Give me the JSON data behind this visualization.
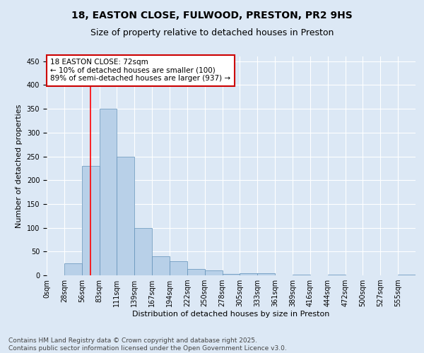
{
  "title_line1": "18, EASTON CLOSE, FULWOOD, PRESTON, PR2 9HS",
  "title_line2": "Size of property relative to detached houses in Preston",
  "xlabel": "Distribution of detached houses by size in Preston",
  "ylabel": "Number of detached properties",
  "footer_line1": "Contains HM Land Registry data © Crown copyright and database right 2025.",
  "footer_line2": "Contains public sector information licensed under the Open Government Licence v3.0.",
  "annotation_line1": "18 EASTON CLOSE: 72sqm",
  "annotation_line2": "← 10% of detached houses are smaller (100)",
  "annotation_line3": "89% of semi-detached houses are larger (937) →",
  "bar_labels": [
    "0sqm",
    "28sqm",
    "56sqm",
    "83sqm",
    "111sqm",
    "139sqm",
    "167sqm",
    "194sqm",
    "222sqm",
    "250sqm",
    "278sqm",
    "305sqm",
    "333sqm",
    "361sqm",
    "389sqm",
    "416sqm",
    "444sqm",
    "472sqm",
    "500sqm",
    "527sqm",
    "555sqm"
  ],
  "bar_values": [
    0,
    25,
    230,
    350,
    250,
    100,
    40,
    30,
    13,
    10,
    3,
    5,
    4,
    0,
    1,
    0,
    2,
    0,
    0,
    0,
    1
  ],
  "bar_color": "#b8d0e8",
  "bar_edge_color": "#6090b8",
  "red_line_x": 2.5,
  "ylim": [
    0,
    460
  ],
  "yticks": [
    0,
    50,
    100,
    150,
    200,
    250,
    300,
    350,
    400,
    450
  ],
  "background_color": "#dce8f5",
  "grid_color": "#ffffff",
  "annotation_box_facecolor": "#ffffff",
  "annotation_box_edgecolor": "#cc0000",
  "title_fontsize": 10,
  "subtitle_fontsize": 9,
  "axis_label_fontsize": 8,
  "tick_fontsize": 7,
  "annotation_fontsize": 7.5,
  "footer_fontsize": 6.5
}
